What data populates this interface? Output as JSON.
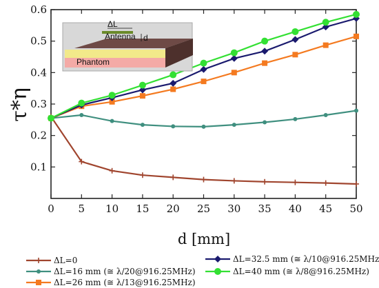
{
  "chart_data": {
    "type": "line",
    "xlabel": "d [mm]",
    "ylabel": "τ*η",
    "xlim": [
      0,
      50
    ],
    "ylim": [
      0,
      0.6
    ],
    "x_ticks": [
      0,
      5,
      10,
      15,
      20,
      25,
      30,
      35,
      40,
      45,
      50
    ],
    "y_ticks": [
      0.1,
      0.2,
      0.3,
      0.4,
      0.5,
      0.6
    ],
    "grid": false,
    "legend_position": "bottom",
    "x": [
      0,
      5,
      10,
      15,
      20,
      25,
      30,
      35,
      40,
      45,
      50
    ],
    "series": [
      {
        "name": "ΔL=0",
        "color": "#a0452e",
        "marker": "plus",
        "values": [
          0.26,
          0.117,
          0.088,
          0.074,
          0.067,
          0.06,
          0.056,
          0.053,
          0.051,
          0.049,
          0.046
        ]
      },
      {
        "name": "ΔL=16 mm (≅ λ/20@916.25MHz)",
        "color": "#3f8f7f",
        "marker": "circle-small",
        "values": [
          0.255,
          0.265,
          0.246,
          0.234,
          0.229,
          0.228,
          0.234,
          0.242,
          0.252,
          0.265,
          0.279
        ]
      },
      {
        "name": "ΔL=26 mm (≅ λ/13@916.25MHz)",
        "color": "#f47a20",
        "marker": "square",
        "values": [
          0.255,
          0.293,
          0.307,
          0.326,
          0.347,
          0.372,
          0.4,
          0.43,
          0.457,
          0.487,
          0.515
        ]
      },
      {
        "name": "ΔL=32.5 mm (≅ λ/10@916.25MHz)",
        "color": "#1a1a6e",
        "marker": "diamond",
        "values": [
          0.255,
          0.297,
          0.32,
          0.345,
          0.366,
          0.41,
          0.445,
          0.468,
          0.505,
          0.545,
          0.572
        ]
      },
      {
        "name": "ΔL=40 mm (≅ λ/8@916.25MHz)",
        "color": "#33e033",
        "marker": "circle",
        "values": [
          0.255,
          0.303,
          0.328,
          0.36,
          0.393,
          0.43,
          0.463,
          0.5,
          0.53,
          0.56,
          0.585
        ]
      }
    ],
    "inset": {
      "labels": {
        "delta_l": "ΔL",
        "antenna": "Antenna",
        "d": "d",
        "phantom": "Phantom"
      }
    }
  }
}
